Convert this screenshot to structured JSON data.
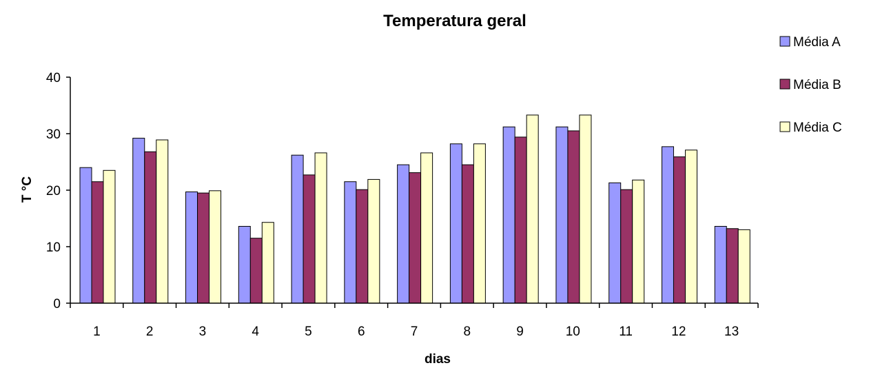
{
  "chart_data": {
    "type": "bar",
    "title": "Temperatura geral",
    "xlabel": "dias",
    "ylabel": "T °C",
    "ylim": [
      0,
      40
    ],
    "yticks": [
      0,
      10,
      20,
      30,
      40
    ],
    "grid": false,
    "legend_position": "top-right",
    "categories": [
      "1",
      "2",
      "3",
      "4",
      "5",
      "6",
      "7",
      "8",
      "9",
      "10",
      "11",
      "12",
      "13"
    ],
    "series": [
      {
        "name": "Média A",
        "color": "#9999FF",
        "values": [
          24.0,
          29.2,
          19.7,
          13.6,
          26.2,
          21.5,
          24.5,
          28.2,
          31.2,
          31.2,
          21.3,
          27.7,
          13.6
        ]
      },
      {
        "name": "Média B",
        "color": "#993366",
        "values": [
          21.5,
          26.8,
          19.5,
          11.5,
          22.7,
          20.1,
          23.1,
          24.5,
          29.4,
          30.5,
          20.1,
          25.9,
          13.2
        ]
      },
      {
        "name": "Média C",
        "color": "#FFFFCC",
        "values": [
          23.5,
          28.9,
          19.9,
          14.3,
          26.6,
          21.9,
          26.6,
          28.2,
          33.3,
          33.3,
          21.8,
          27.1,
          13.0
        ]
      }
    ]
  }
}
